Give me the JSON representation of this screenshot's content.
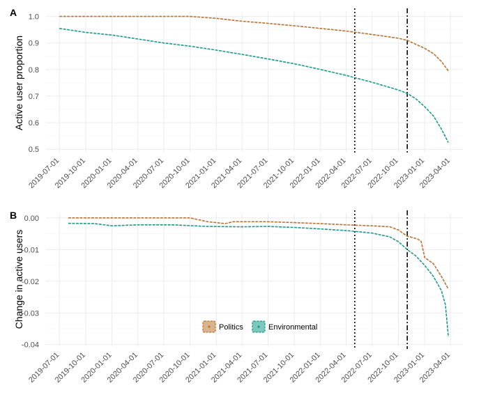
{
  "colors": {
    "politics": "#b87333",
    "environmental": "#1a9a8a",
    "politics_fill": "#d9b48f",
    "environmental_fill": "#7dc7bc",
    "grid": "#ebebeb",
    "background": "#ffffff"
  },
  "chart_data": [
    {
      "type": "line",
      "panel_tag": "A",
      "title": "",
      "xlabel": "",
      "ylabel": "Active user proportion",
      "x_is_date": true,
      "xlim": [
        "2019-05-15",
        "2023-05-15"
      ],
      "ylim": [
        0.49,
        1.02
      ],
      "x_ticks": [
        "2019-07-01",
        "2019-10-01",
        "2020-01-01",
        "2020-04-01",
        "2020-07-01",
        "2020-10-01",
        "2021-01-01",
        "2021-04-01",
        "2021-07-01",
        "2021-10-01",
        "2022-01-01",
        "2022-04-01",
        "2022-07-01",
        "2022-10-01",
        "2023-01-01",
        "2023-04-01"
      ],
      "y_ticks": [
        "0.5",
        "0.6",
        "0.7",
        "0.8",
        "0.9",
        "1.0"
      ],
      "grid": true,
      "vlines": [
        {
          "x": "2022-05-01",
          "style": "dotted"
        },
        {
          "x": "2022-11-01",
          "style": "dashdot"
        }
      ],
      "series": [
        {
          "name": "Politics",
          "color_key": "politics",
          "x": [
            "2019-07-01",
            "2020-01-01",
            "2020-07-01",
            "2020-10-01",
            "2021-01-01",
            "2021-04-01",
            "2021-07-01",
            "2021-10-01",
            "2022-01-01",
            "2022-04-01",
            "2022-07-01",
            "2022-10-01",
            "2022-11-01",
            "2022-12-01",
            "2023-01-01",
            "2023-02-01",
            "2023-03-01",
            "2023-03-25"
          ],
          "y": [
            1.0,
            1.0,
            1.0,
            1.0,
            0.993,
            0.982,
            0.974,
            0.965,
            0.955,
            0.945,
            0.932,
            0.918,
            0.91,
            0.895,
            0.88,
            0.86,
            0.83,
            0.795
          ]
        },
        {
          "name": "Environmental",
          "color_key": "environmental",
          "x": [
            "2019-07-01",
            "2019-10-01",
            "2020-01-01",
            "2020-04-01",
            "2020-07-01",
            "2020-10-01",
            "2021-01-01",
            "2021-04-01",
            "2021-07-01",
            "2021-10-01",
            "2022-01-01",
            "2022-04-01",
            "2022-07-01",
            "2022-10-01",
            "2022-11-01",
            "2022-12-01",
            "2023-01-01",
            "2023-02-01",
            "2023-03-01",
            "2023-03-25"
          ],
          "y": [
            0.955,
            0.94,
            0.93,
            0.915,
            0.9,
            0.888,
            0.873,
            0.857,
            0.84,
            0.822,
            0.8,
            0.778,
            0.752,
            0.723,
            0.71,
            0.69,
            0.66,
            0.625,
            0.575,
            0.525
          ]
        }
      ]
    },
    {
      "type": "line",
      "panel_tag": "B",
      "title": "",
      "xlabel": "",
      "ylabel": "Change in active users",
      "x_is_date": true,
      "xlim": [
        "2019-05-15",
        "2023-05-15"
      ],
      "ylim": [
        -0.0405,
        0.0015
      ],
      "x_ticks": [
        "2019-07-01",
        "2019-10-01",
        "2020-01-01",
        "2020-04-01",
        "2020-07-01",
        "2020-10-01",
        "2021-01-01",
        "2021-04-01",
        "2021-07-01",
        "2021-10-01",
        "2022-01-01",
        "2022-04-01",
        "2022-07-01",
        "2022-10-01",
        "2023-01-01",
        "2023-04-01"
      ],
      "y_ticks": [
        "-0.04",
        "-0.03",
        "-0.02",
        "-0.01",
        "0.00"
      ],
      "grid": true,
      "vlines": [
        {
          "x": "2022-05-01",
          "style": "dotted"
        },
        {
          "x": "2022-11-01",
          "style": "dashdot"
        }
      ],
      "legend": {
        "placement": "bottom-center",
        "entries": [
          "Politics",
          "Environmental"
        ]
      },
      "series": [
        {
          "name": "Politics",
          "color_key": "politics",
          "x": [
            "2019-08-01",
            "2020-01-01",
            "2020-06-01",
            "2020-10-01",
            "2020-12-01",
            "2021-02-01",
            "2021-03-01",
            "2021-07-01",
            "2021-10-01",
            "2022-01-01",
            "2022-04-01",
            "2022-07-01",
            "2022-09-01",
            "2022-10-01",
            "2022-11-01",
            "2022-11-20",
            "2022-12-10",
            "2022-12-20",
            "2023-01-01",
            "2023-02-01",
            "2023-03-01",
            "2023-03-25"
          ],
          "y": [
            0.0,
            0.0,
            0.0,
            0.0,
            -0.0012,
            -0.0018,
            -0.0012,
            -0.0012,
            -0.0015,
            -0.0018,
            -0.0022,
            -0.0025,
            -0.0028,
            -0.0038,
            -0.0058,
            -0.0062,
            -0.0068,
            -0.0075,
            -0.0125,
            -0.0145,
            -0.0185,
            -0.0225
          ]
        },
        {
          "name": "Environmental",
          "color_key": "environmental",
          "x": [
            "2019-08-01",
            "2019-11-01",
            "2020-01-01",
            "2020-04-01",
            "2020-08-01",
            "2020-12-01",
            "2021-04-01",
            "2021-07-01",
            "2021-10-01",
            "2022-01-01",
            "2022-04-01",
            "2022-07-01",
            "2022-09-01",
            "2022-10-01",
            "2022-11-01",
            "2022-12-01",
            "2023-01-01",
            "2023-02-01",
            "2023-03-01",
            "2023-03-15",
            "2023-03-25"
          ],
          "y": [
            -0.0017,
            -0.0018,
            -0.0025,
            -0.0022,
            -0.0022,
            -0.0027,
            -0.0028,
            -0.0027,
            -0.003,
            -0.0035,
            -0.004,
            -0.0048,
            -0.006,
            -0.0075,
            -0.01,
            -0.012,
            -0.015,
            -0.0185,
            -0.023,
            -0.0275,
            -0.0375
          ]
        }
      ]
    }
  ]
}
